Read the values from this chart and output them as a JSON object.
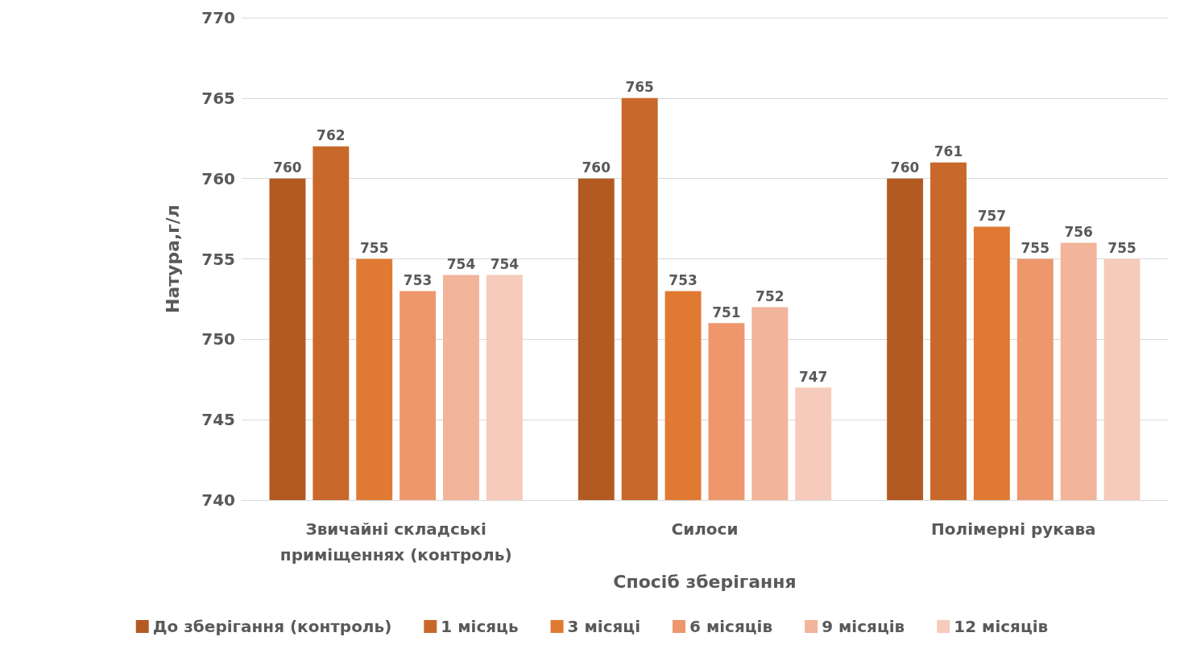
{
  "chart_data": {
    "type": "bar",
    "xlabel": "Спосіб зберігання",
    "ylabel": "Натура,г/л",
    "categories": [
      "Звичайні складські\nприміщеннях (контроль)",
      "Силоси",
      "Полімерні рукава"
    ],
    "series": [
      {
        "name": "До зберігання (контроль)",
        "color": "#b35a22",
        "values": [
          760,
          760,
          760
        ]
      },
      {
        "name": "1 місяць",
        "color": "#c8682a",
        "values": [
          762,
          765,
          761
        ]
      },
      {
        "name": "3 місяці",
        "color": "#e07a32",
        "values": [
          755,
          753,
          757
        ]
      },
      {
        "name": "6 місяців",
        "color": "#ee966c",
        "values": [
          753,
          751,
          755
        ]
      },
      {
        "name": "9 місяців",
        "color": "#f2b49a",
        "values": [
          754,
          752,
          756
        ]
      },
      {
        "name": "12 місяців",
        "color": "#f6cbbb",
        "values": [
          754,
          747,
          755
        ]
      }
    ],
    "ylim": [
      740,
      770
    ],
    "yticks": [
      740,
      745,
      750,
      755,
      760,
      765,
      770
    ],
    "grid": "y",
    "legend": "bottom",
    "data_labels": true
  }
}
